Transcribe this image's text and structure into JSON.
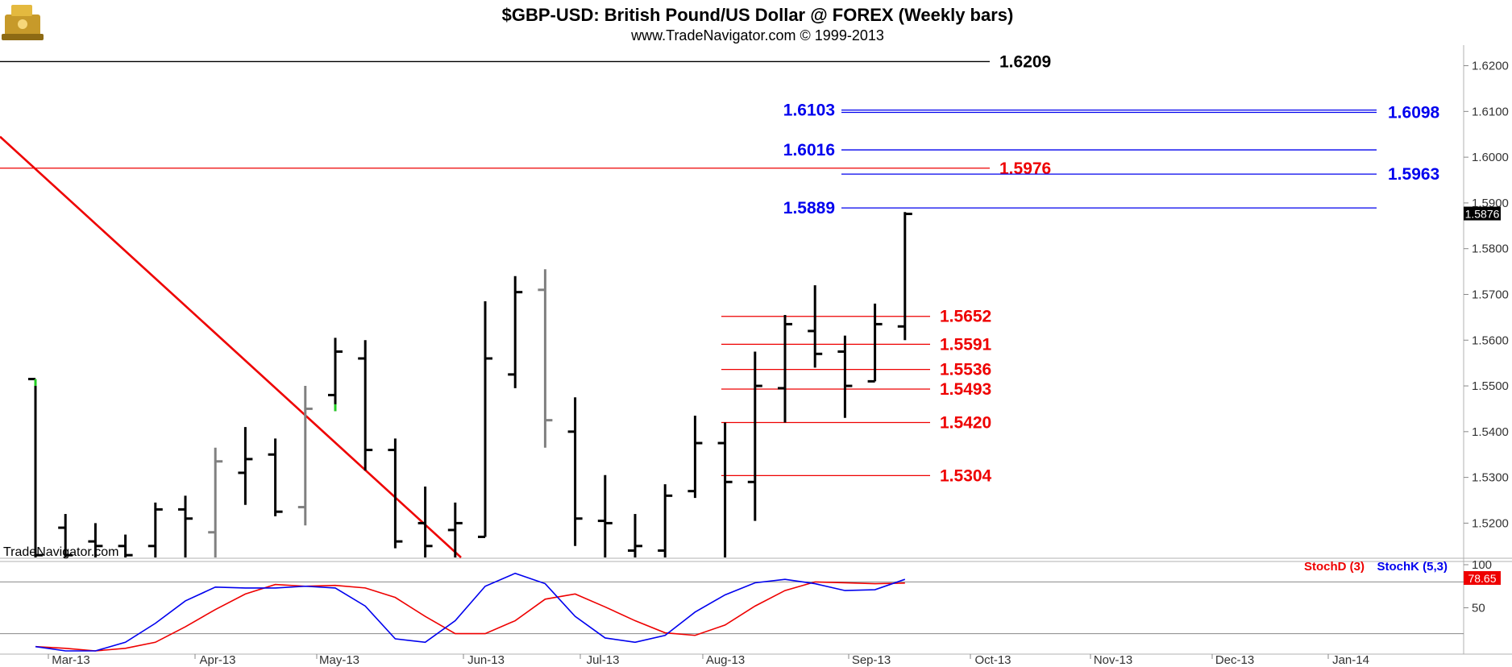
{
  "header": {
    "title": "$GBP-USD:  British Pound/US Dollar @ FOREX  (Weekly bars)",
    "subtitle": "www.TradeNavigator.com © 1999-2013",
    "watermark": "TradeNavigator.com"
  },
  "chart_data": [
    {
      "type": "ohlc",
      "title": "$GBP-USD:  British Pound/US Dollar @ FOREX  (Weekly bars)",
      "ylim": [
        1.5125,
        1.6245
      ],
      "y_ticks": [
        "1.5200",
        "1.5300",
        "1.5400",
        "1.5500",
        "1.5600",
        "1.5700",
        "1.5800",
        "1.5900",
        "1.6000",
        "1.6100",
        "1.6200"
      ],
      "x_ticks": [
        "Mar-13",
        "Apr-13",
        "May-13",
        "Jun-13",
        "Jul-13",
        "Aug-13",
        "Sep-13",
        "Oct-13",
        "Nov-13",
        "Dec-13",
        "Jan-14"
      ],
      "last_price": "1.5876",
      "colors": {
        "up": "#000000",
        "gray": "#808080",
        "green": "#22cc22",
        "red": "#ee0000",
        "blue": "#0000ee"
      },
      "bars": [
        {
          "h": 1.5515,
          "l": 1.5125,
          "o": 1.5515,
          "c": 1.513,
          "color": "#000000"
        },
        {
          "h": 1.522,
          "l": 1.5125,
          "o": 1.519,
          "c": 1.513,
          "color": "#000000"
        },
        {
          "h": 1.52,
          "l": 1.5125,
          "o": 1.516,
          "c": 1.515,
          "color": "#000000"
        },
        {
          "h": 1.5175,
          "l": 1.5125,
          "o": 1.515,
          "c": 1.513,
          "color": "#000000"
        },
        {
          "h": 1.5245,
          "l": 1.5125,
          "o": 1.515,
          "c": 1.523,
          "color": "#000000"
        },
        {
          "h": 1.526,
          "l": 1.5125,
          "o": 1.523,
          "c": 1.521,
          "color": "#000000"
        },
        {
          "h": 1.5365,
          "l": 1.5125,
          "o": 1.518,
          "c": 1.5335,
          "color": "#808080"
        },
        {
          "h": 1.541,
          "l": 1.524,
          "o": 1.531,
          "c": 1.534,
          "color": "#000000"
        },
        {
          "h": 1.5385,
          "l": 1.5215,
          "o": 1.535,
          "c": 1.5225,
          "color": "#000000"
        },
        {
          "h": 1.55,
          "l": 1.5195,
          "o": 1.5235,
          "c": 1.545,
          "color": "#808080"
        },
        {
          "h": 1.5605,
          "l": 1.5445,
          "o": 1.548,
          "c": 1.5575,
          "color": "#000000"
        },
        {
          "h": 1.56,
          "l": 1.5315,
          "o": 1.556,
          "c": 1.536,
          "color": "#000000"
        },
        {
          "h": 1.5385,
          "l": 1.5145,
          "o": 1.536,
          "c": 1.516,
          "color": "#000000"
        },
        {
          "h": 1.528,
          "l": 1.5125,
          "o": 1.52,
          "c": 1.515,
          "color": "#000000"
        },
        {
          "h": 1.5245,
          "l": 1.5125,
          "o": 1.5185,
          "c": 1.52,
          "color": "#000000"
        },
        {
          "h": 1.5685,
          "l": 1.517,
          "o": 1.517,
          "c": 1.556,
          "color": "#000000"
        },
        {
          "h": 1.574,
          "l": 1.5495,
          "o": 1.5525,
          "c": 1.5705,
          "color": "#000000"
        },
        {
          "h": 1.5755,
          "l": 1.5365,
          "o": 1.571,
          "c": 1.5425,
          "color": "#808080"
        },
        {
          "h": 1.5475,
          "l": 1.515,
          "o": 1.54,
          "c": 1.521,
          "color": "#000000"
        },
        {
          "h": 1.5305,
          "l": 1.5125,
          "o": 1.5205,
          "c": 1.52,
          "color": "#000000"
        },
        {
          "h": 1.522,
          "l": 1.5125,
          "o": 1.514,
          "c": 1.515,
          "color": "#000000"
        },
        {
          "h": 1.5285,
          "l": 1.5125,
          "o": 1.514,
          "c": 1.526,
          "color": "#000000"
        },
        {
          "h": 1.5435,
          "l": 1.5255,
          "o": 1.527,
          "c": 1.5375,
          "color": "#000000"
        },
        {
          "h": 1.542,
          "l": 1.5125,
          "o": 1.5375,
          "c": 1.529,
          "color": "#000000"
        },
        {
          "h": 1.5575,
          "l": 1.5205,
          "o": 1.529,
          "c": 1.55,
          "color": "#000000"
        },
        {
          "h": 1.5655,
          "l": 1.542,
          "o": 1.5495,
          "c": 1.5635,
          "color": "#000000"
        },
        {
          "h": 1.572,
          "l": 1.554,
          "o": 1.562,
          "c": 1.557,
          "color": "#000000"
        },
        {
          "h": 1.561,
          "l": 1.543,
          "o": 1.5575,
          "c": 1.55,
          "color": "#000000"
        },
        {
          "h": 1.568,
          "l": 1.551,
          "o": 1.551,
          "c": 1.5635,
          "color": "#000000"
        },
        {
          "h": 1.588,
          "l": 1.56,
          "o": 1.563,
          "c": 1.5876,
          "color": "#000000"
        }
      ],
      "levels": [
        {
          "value": 1.6209,
          "label": "1.6209",
          "color": "#000000",
          "label_side": "right"
        },
        {
          "value": 1.6103,
          "label": "1.6103",
          "color": "#0000ee",
          "label_side": "left"
        },
        {
          "value": 1.6098,
          "label": "1.6098",
          "color": "#0000ee",
          "label_side": "right"
        },
        {
          "value": 1.6016,
          "label": "1.6016",
          "color": "#0000ee",
          "label_side": "left"
        },
        {
          "value": 1.5976,
          "label": "1.5976",
          "color": "#ee0000",
          "label_side": "right"
        },
        {
          "value": 1.5963,
          "label": "1.5963",
          "color": "#0000ee",
          "label_side": "right"
        },
        {
          "value": 1.5889,
          "label": "1.5889",
          "color": "#0000ee",
          "label_side": "left"
        },
        {
          "value": 1.5652,
          "label": "1.5652",
          "color": "#ee0000",
          "label_side": "right"
        },
        {
          "value": 1.5591,
          "label": "1.5591",
          "color": "#ee0000",
          "label_side": "right"
        },
        {
          "value": 1.5536,
          "label": "1.5536",
          "color": "#ee0000",
          "label_side": "right"
        },
        {
          "value": 1.5493,
          "label": "1.5493",
          "color": "#ee0000",
          "label_side": "right"
        },
        {
          "value": 1.542,
          "label": "1.5420",
          "color": "#ee0000",
          "label_side": "right"
        },
        {
          "value": 1.5304,
          "label": "1.5304",
          "color": "#ee0000",
          "label_side": "right"
        }
      ],
      "trendline": {
        "color": "#ee0000",
        "from_price": 1.6045,
        "to_price": 1.5125
      }
    },
    {
      "type": "line",
      "title": "",
      "ylim": [
        0,
        100
      ],
      "y_ticks": [
        "100",
        "50"
      ],
      "last_value": "78.65",
      "series": [
        {
          "name": "StochD (3)",
          "color": "#ee0000",
          "values": [
            5,
            3,
            0,
            3,
            10,
            28,
            48,
            66,
            77,
            75,
            76,
            73,
            62,
            40,
            20,
            20,
            35,
            60,
            66,
            51,
            35,
            21,
            18,
            30,
            52,
            70,
            80,
            79,
            78,
            78.65
          ]
        },
        {
          "name": "StochK (5,3)",
          "color": "#0000ee",
          "values": [
            5,
            0,
            0,
            10,
            32,
            58,
            74,
            73,
            73,
            75,
            73,
            52,
            14,
            10,
            35,
            75,
            90,
            78,
            40,
            15,
            10,
            18,
            45,
            65,
            79,
            83,
            78,
            70,
            71,
            83
          ]
        }
      ]
    }
  ]
}
